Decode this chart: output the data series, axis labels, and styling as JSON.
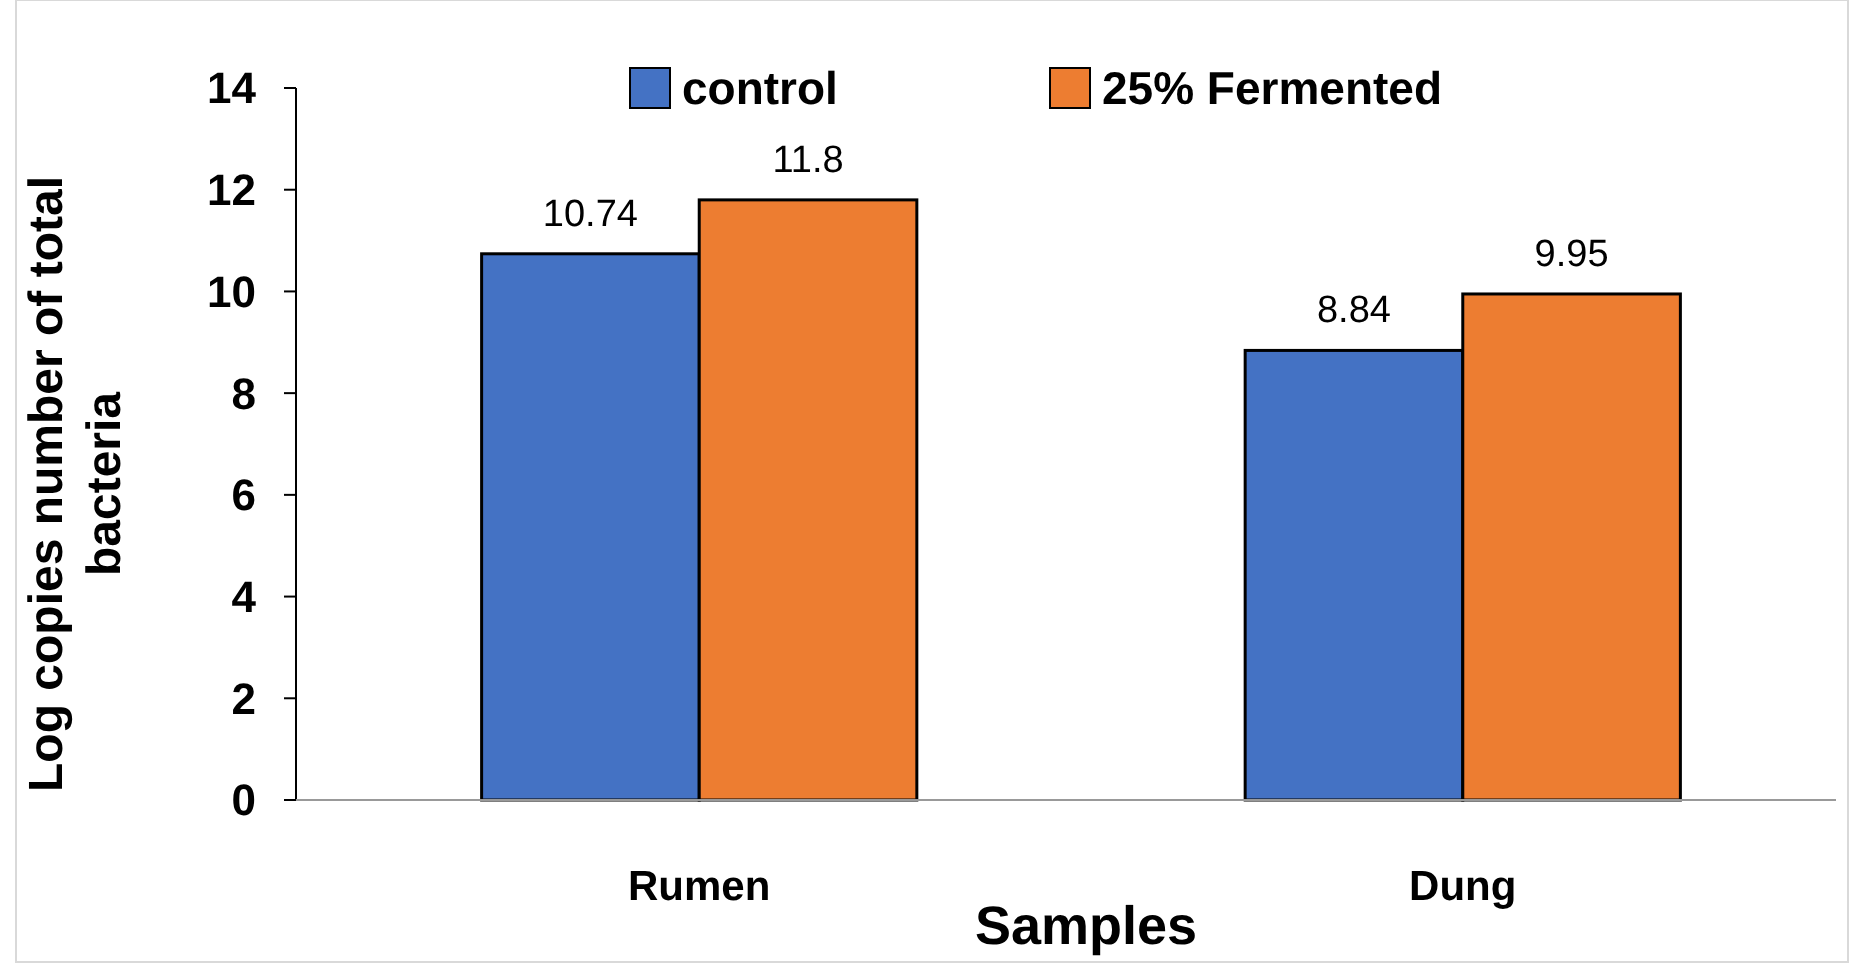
{
  "chart_data": {
    "type": "bar",
    "xlabel": "Samples",
    "ylabel": "Log copies number of total bacteria",
    "categories": [
      "Rumen",
      "Dung"
    ],
    "series": [
      {
        "name": "control",
        "color": "#4472c4",
        "values": [
          10.74,
          8.84
        ]
      },
      {
        "name": "25% Fermented",
        "color": "#ed7d31",
        "values": [
          11.8,
          9.95
        ]
      }
    ],
    "ylim": [
      0,
      14
    ],
    "yticks": [
      0,
      2,
      4,
      6,
      8,
      10,
      12,
      14
    ],
    "grid": false,
    "legend": "top",
    "data_labels": true
  }
}
